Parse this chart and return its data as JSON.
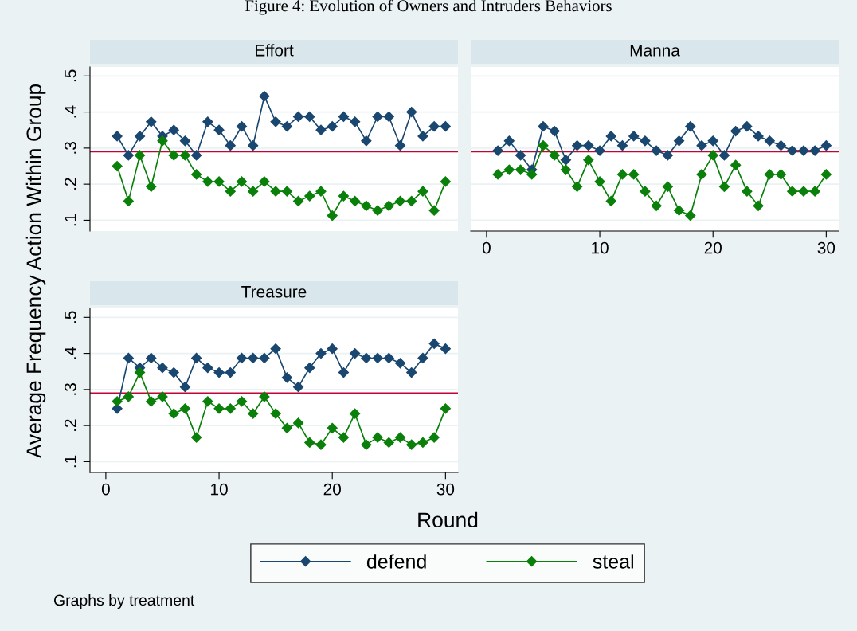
{
  "chart_data": [
    {
      "type": "line",
      "title": "Effort",
      "ylabel": "Average Frequency Action Within Group",
      "annotations": [
        "Figure 4: Evolution of Owners and Intruders Behaviors",
        "Graphs by treatment"
      ],
      "legend": "bottom",
      "marker": "diamond",
      "line_style": "solid",
      "grid": "y",
      "tick_labels": "y",
      "x": [
        1,
        2,
        3,
        4,
        5,
        6,
        7,
        8,
        9,
        10,
        11,
        12,
        13,
        14,
        15,
        16,
        17,
        18,
        19,
        20,
        21,
        22,
        23,
        24,
        25,
        26,
        27,
        28,
        29,
        30
      ],
      "xlim": [
        -1.4,
        31.1
      ],
      "xticks": [
        0,
        10,
        20,
        30
      ],
      "ylim": [
        0.07,
        0.525
      ],
      "yticks": [
        {
          "value": 0.1,
          "label": ".1"
        },
        {
          "value": 0.2,
          "label": ".2"
        },
        {
          "value": 0.3,
          "label": ".3"
        },
        {
          "value": 0.4,
          "label": ".4"
        },
        {
          "value": 0.5,
          "label": ".5"
        }
      ],
      "ref_lines": [
        {
          "axis": "y",
          "value": 0.29,
          "color": "#c10534"
        }
      ],
      "series": [
        {
          "name": "defend",
          "color": "#1a476f",
          "values": [
            0.333,
            0.28,
            0.333,
            0.373,
            0.333,
            0.35,
            0.32,
            0.28,
            0.373,
            0.35,
            0.307,
            0.36,
            0.307,
            0.444,
            0.373,
            0.36,
            0.387,
            0.387,
            0.35,
            0.36,
            0.387,
            0.373,
            0.32,
            0.387,
            0.387,
            0.307,
            0.4,
            0.333,
            0.36,
            0.36
          ]
        },
        {
          "name": "steal",
          "color": "#0a800a",
          "values": [
            0.25,
            0.153,
            0.28,
            0.193,
            0.32,
            0.28,
            0.28,
            0.227,
            0.207,
            0.207,
            0.18,
            0.207,
            0.18,
            0.207,
            0.18,
            0.18,
            0.153,
            0.167,
            0.18,
            0.113,
            0.167,
            0.153,
            0.14,
            0.127,
            0.14,
            0.153,
            0.153,
            0.18,
            0.127,
            0.207
          ]
        }
      ]
    },
    {
      "type": "line",
      "title": "Manna",
      "marker": "diamond",
      "line_style": "solid",
      "grid": "y",
      "tick_labels": "x",
      "x": [
        1,
        2,
        3,
        4,
        5,
        6,
        7,
        8,
        9,
        10,
        11,
        12,
        13,
        14,
        15,
        16,
        17,
        18,
        19,
        20,
        21,
        22,
        23,
        24,
        25,
        26,
        27,
        28,
        29,
        30
      ],
      "xlim": [
        -1.4,
        31.1
      ],
      "xticks": [
        0,
        10,
        20,
        30
      ],
      "ylim": [
        0.07,
        0.525
      ],
      "yticks": [
        0.1,
        0.2,
        0.3,
        0.4,
        0.5
      ],
      "ref_lines": [
        {
          "axis": "y",
          "value": 0.29,
          "color": "#c10534"
        }
      ],
      "series": [
        {
          "color": "#1a476f",
          "values": [
            0.293,
            0.32,
            0.28,
            0.24,
            0.36,
            0.347,
            0.267,
            0.307,
            0.307,
            0.293,
            0.333,
            0.307,
            0.333,
            0.32,
            0.293,
            0.28,
            0.32,
            0.36,
            0.307,
            0.32,
            0.28,
            0.347,
            0.36,
            0.333,
            0.32,
            0.307,
            0.293,
            0.293,
            0.293,
            0.307
          ]
        },
        {
          "color": "#0a800a",
          "values": [
            0.227,
            0.24,
            0.24,
            0.227,
            0.307,
            0.28,
            0.24,
            0.193,
            0.267,
            0.207,
            0.153,
            0.227,
            0.227,
            0.18,
            0.14,
            0.193,
            0.127,
            0.113,
            0.227,
            0.28,
            0.193,
            0.253,
            0.18,
            0.14,
            0.227,
            0.227,
            0.18,
            0.18,
            0.18,
            0.227
          ]
        }
      ]
    },
    {
      "type": "line",
      "title": "Treasure",
      "xlabel": "Round",
      "marker": "diamond",
      "line_style": "solid",
      "grid": "y",
      "x": [
        1,
        2,
        3,
        4,
        5,
        6,
        7,
        8,
        9,
        10,
        11,
        12,
        13,
        14,
        15,
        16,
        17,
        18,
        19,
        20,
        21,
        22,
        23,
        24,
        25,
        26,
        27,
        28,
        29,
        30
      ],
      "xlim": [
        -1.4,
        31.1
      ],
      "xticks": [
        0,
        10,
        20,
        30
      ],
      "ylim": [
        0.07,
        0.525
      ],
      "yticks": [
        {
          "value": 0.1,
          "label": ".1"
        },
        {
          "value": 0.2,
          "label": ".2"
        },
        {
          "value": 0.3,
          "label": ".3"
        },
        {
          "value": 0.4,
          "label": ".4"
        },
        {
          "value": 0.5,
          "label": ".5"
        }
      ],
      "ref_lines": [
        {
          "axis": "y",
          "value": 0.29,
          "color": "#c10534"
        }
      ],
      "series": [
        {
          "color": "#1a476f",
          "values": [
            0.247,
            0.387,
            0.36,
            0.387,
            0.36,
            0.347,
            0.307,
            0.387,
            0.36,
            0.347,
            0.347,
            0.387,
            0.387,
            0.387,
            0.413,
            0.333,
            0.307,
            0.36,
            0.4,
            0.413,
            0.347,
            0.4,
            0.387,
            0.387,
            0.387,
            0.373,
            0.347,
            0.387,
            0.427,
            0.413
          ]
        },
        {
          "color": "#0a800a",
          "values": [
            0.267,
            0.28,
            0.347,
            0.267,
            0.28,
            0.233,
            0.247,
            0.167,
            0.267,
            0.247,
            0.247,
            0.267,
            0.233,
            0.28,
            0.233,
            0.193,
            0.207,
            0.153,
            0.147,
            0.193,
            0.167,
            0.233,
            0.147,
            0.167,
            0.153,
            0.167,
            0.147,
            0.153,
            0.167,
            0.247
          ]
        }
      ]
    }
  ]
}
